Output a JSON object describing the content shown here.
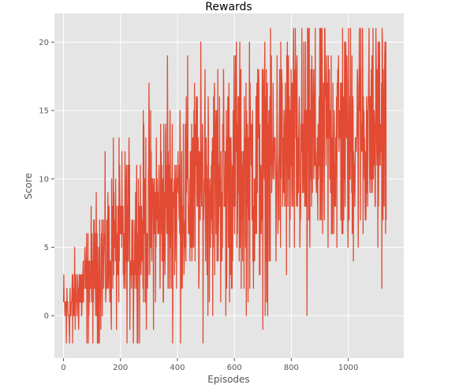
{
  "chart_data": {
    "type": "line",
    "title": "Rewards",
    "xlabel": "Episodes",
    "ylabel": "Score",
    "xlim": [
      -32,
      1195
    ],
    "ylim": [
      -3.1,
      22.1
    ],
    "xticks": [
      0,
      200,
      400,
      600,
      800,
      1000
    ],
    "yticks": [
      0,
      5,
      10,
      15,
      20
    ],
    "grid": true,
    "colors": {
      "line": "#e24a33",
      "panel": "#e5e5e5",
      "grid": "#ffffff",
      "tick_text": "#555555"
    },
    "series": [
      {
        "num_points": 1134,
        "anchors": [
          [
            0,
            0.5
          ],
          [
            20,
            0.4
          ],
          [
            40,
            1.2
          ],
          [
            60,
            1.8
          ],
          [
            80,
            2.3
          ],
          [
            100,
            2.9
          ],
          [
            130,
            3.6
          ],
          [
            160,
            4.4
          ],
          [
            200,
            5.1
          ],
          [
            240,
            5.8
          ],
          [
            280,
            6.5
          ],
          [
            320,
            7.2
          ],
          [
            360,
            7.9
          ],
          [
            400,
            8.5
          ],
          [
            440,
            9.0
          ],
          [
            480,
            9.4
          ],
          [
            520,
            9.7
          ],
          [
            560,
            10.0
          ],
          [
            600,
            10.3
          ],
          [
            640,
            10.5
          ],
          [
            680,
            10.8
          ],
          [
            720,
            11.1
          ],
          [
            760,
            11.5
          ],
          [
            800,
            11.8
          ],
          [
            840,
            12.1
          ],
          [
            880,
            12.5
          ],
          [
            920,
            12.8
          ],
          [
            960,
            13.0
          ],
          [
            1000,
            13.2
          ],
          [
            1040,
            13.4
          ],
          [
            1080,
            13.5
          ],
          [
            1133,
            13.6
          ]
        ],
        "spread": [
          [
            0,
            1.2
          ],
          [
            60,
            1.8
          ],
          [
            120,
            2.6
          ],
          [
            200,
            3.2
          ],
          [
            300,
            3.6
          ],
          [
            400,
            4.2
          ],
          [
            600,
            4.5
          ],
          [
            800,
            4.6
          ],
          [
            1000,
            4.6
          ],
          [
            1133,
            4.5
          ]
        ],
        "min": -2,
        "max": 21,
        "highlights": [
          [
            10,
            -2
          ],
          [
            32,
            -2
          ],
          [
            245,
            -2
          ],
          [
            570,
            0
          ],
          [
            700,
            -1
          ],
          [
            855,
            0
          ],
          [
            175,
            13
          ],
          [
            300,
            17
          ],
          [
            365,
            19
          ],
          [
            497,
            18
          ],
          [
            607,
            20
          ],
          [
            860,
            19
          ],
          [
            900,
            21
          ],
          [
            918,
            21
          ],
          [
            1050,
            21
          ],
          [
            1110,
            20
          ],
          [
            1120,
            20
          ]
        ]
      }
    ]
  }
}
